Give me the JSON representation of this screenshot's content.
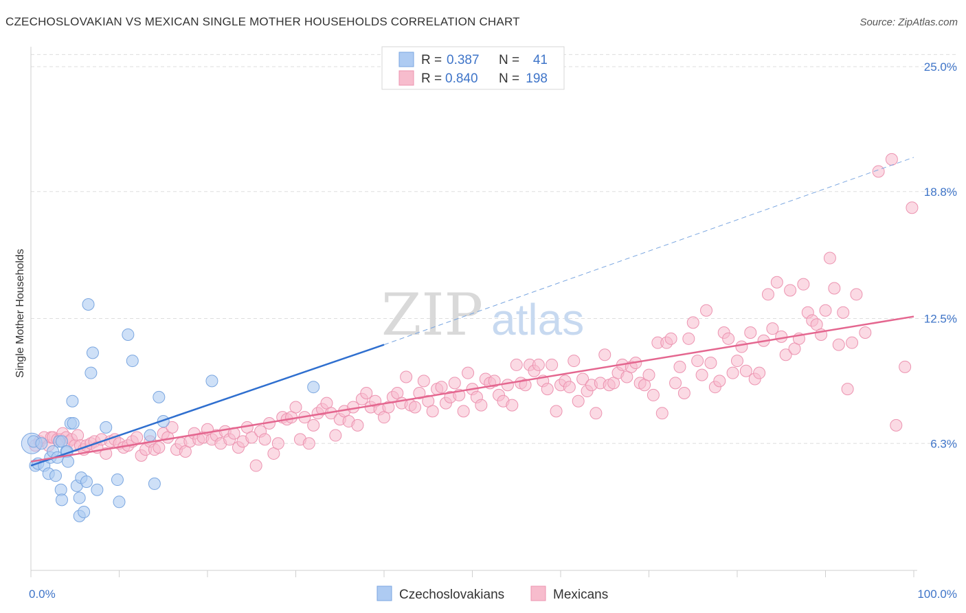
{
  "title": "CZECHOSLOVAKIAN VS MEXICAN SINGLE MOTHER HOUSEHOLDS CORRELATION CHART",
  "source": "Source: ZipAtlas.com",
  "watermark": {
    "zip": "ZIP",
    "atlas": "atlas"
  },
  "colors": {
    "blue_fill": "#aecbf2",
    "blue_stroke": "#7aa6e0",
    "blue_line": "#2f6fcf",
    "pink_fill": "#f7bccd",
    "pink_stroke": "#ec93b0",
    "pink_line": "#e4668f",
    "tick_text": "#3e74c8",
    "grid": "#dddddd"
  },
  "legend": {
    "rows": [
      {
        "r_label": "R =",
        "r_value": "0.387",
        "n_label": "N =",
        "n_value": "41"
      },
      {
        "r_label": "R =",
        "r_value": "0.840",
        "n_label": "N =",
        "n_value": "198"
      }
    ]
  },
  "bottom_legend": [
    "Czechoslovakians",
    "Mexicans"
  ],
  "chart_data": {
    "type": "scatter",
    "title": "CZECHOSLOVAKIAN VS MEXICAN SINGLE MOTHER HOUSEHOLDS CORRELATION CHART",
    "xlabel": "",
    "ylabel": "Single Mother Households",
    "xlim": [
      0,
      100
    ],
    "ylim": [
      0,
      25.6
    ],
    "x_tick_labels": [
      "0.0%",
      "100.0%"
    ],
    "y_ticks": [
      6.3,
      12.5,
      18.8,
      25.0
    ],
    "y_tick_labels": [
      "6.3%",
      "12.5%",
      "18.8%",
      "25.0%"
    ],
    "grid": true,
    "legend_position": "top-center",
    "series": [
      {
        "name": "Czechoslovakians",
        "color": "#aecbf2",
        "trend": {
          "x": [
            0,
            40
          ],
          "y": [
            5.2,
            11.2
          ],
          "dashed_to": [
            100,
            20.5
          ]
        },
        "points": [
          [
            0.3,
            6.4
          ],
          [
            0.5,
            5.2
          ],
          [
            0.8,
            5.3
          ],
          [
            1.2,
            6.3
          ],
          [
            1.5,
            5.2
          ],
          [
            2.0,
            4.8
          ],
          [
            2.2,
            5.6
          ],
          [
            2.5,
            5.9
          ],
          [
            2.8,
            4.7
          ],
          [
            3.0,
            5.6
          ],
          [
            3.2,
            6.4
          ],
          [
            3.5,
            6.4
          ],
          [
            3.4,
            4.0
          ],
          [
            3.5,
            3.5
          ],
          [
            4.0,
            5.9
          ],
          [
            4.1,
            5.9
          ],
          [
            4.2,
            5.4
          ],
          [
            4.5,
            7.3
          ],
          [
            4.7,
            8.4
          ],
          [
            4.8,
            7.3
          ],
          [
            5.2,
            4.2
          ],
          [
            5.5,
            3.6
          ],
          [
            5.5,
            2.7
          ],
          [
            5.7,
            4.6
          ],
          [
            6.0,
            2.9
          ],
          [
            6.5,
            13.2
          ],
          [
            6.3,
            4.4
          ],
          [
            6.8,
            9.8
          ],
          [
            7.0,
            10.8
          ],
          [
            7.5,
            4.0
          ],
          [
            8.5,
            7.1
          ],
          [
            9.8,
            4.5
          ],
          [
            10.0,
            3.4
          ],
          [
            11.0,
            11.7
          ],
          [
            11.5,
            10.4
          ],
          [
            14.0,
            4.3
          ],
          [
            14.5,
            8.6
          ],
          [
            15.0,
            7.4
          ],
          [
            13.5,
            6.7
          ],
          [
            20.5,
            9.4
          ],
          [
            32.0,
            9.1
          ]
        ]
      },
      {
        "name": "Mexicans",
        "color": "#f7bccd",
        "trend": {
          "x": [
            0,
            100
          ],
          "y": [
            5.4,
            12.6
          ]
        },
        "points": [
          [
            0.5,
            6.2
          ],
          [
            1.0,
            6.4
          ],
          [
            1.5,
            6.6
          ],
          [
            2.0,
            6.2
          ],
          [
            2.3,
            6.6
          ],
          [
            2.5,
            6.6
          ],
          [
            3.0,
            6.5
          ],
          [
            3.3,
            6.5
          ],
          [
            3.6,
            6.8
          ],
          [
            4.0,
            6.6
          ],
          [
            4.3,
            6.4
          ],
          [
            4.6,
            6.5
          ],
          [
            5.0,
            6.2
          ],
          [
            5.3,
            6.7
          ],
          [
            5.6,
            6.2
          ],
          [
            6.0,
            6.0
          ],
          [
            6.3,
            6.2
          ],
          [
            6.8,
            6.3
          ],
          [
            7.2,
            6.4
          ],
          [
            7.5,
            6.1
          ],
          [
            8.0,
            6.5
          ],
          [
            8.5,
            5.8
          ],
          [
            9.0,
            6.4
          ],
          [
            9.5,
            6.5
          ],
          [
            10.0,
            6.3
          ],
          [
            10.5,
            6.1
          ],
          [
            11.0,
            6.2
          ],
          [
            11.5,
            6.4
          ],
          [
            12.0,
            6.6
          ],
          [
            12.5,
            5.7
          ],
          [
            13.0,
            6.0
          ],
          [
            13.5,
            6.4
          ],
          [
            14.0,
            6.0
          ],
          [
            14.5,
            6.1
          ],
          [
            15.0,
            6.8
          ],
          [
            15.5,
            6.6
          ],
          [
            16.0,
            7.1
          ],
          [
            16.5,
            6.0
          ],
          [
            17.0,
            6.3
          ],
          [
            17.5,
            5.9
          ],
          [
            18.0,
            6.4
          ],
          [
            18.5,
            6.8
          ],
          [
            19.0,
            6.5
          ],
          [
            19.5,
            6.6
          ],
          [
            20.0,
            7.0
          ],
          [
            20.5,
            6.5
          ],
          [
            21.0,
            6.7
          ],
          [
            21.5,
            6.3
          ],
          [
            22.0,
            6.9
          ],
          [
            22.5,
            6.5
          ],
          [
            23.0,
            6.8
          ],
          [
            23.5,
            6.1
          ],
          [
            24.0,
            6.4
          ],
          [
            24.5,
            7.1
          ],
          [
            25.0,
            6.6
          ],
          [
            25.5,
            5.2
          ],
          [
            26.0,
            6.9
          ],
          [
            26.5,
            6.5
          ],
          [
            27.0,
            7.3
          ],
          [
            27.5,
            5.8
          ],
          [
            28.0,
            6.3
          ],
          [
            28.5,
            7.6
          ],
          [
            29.0,
            7.5
          ],
          [
            29.5,
            7.6
          ],
          [
            30.0,
            8.1
          ],
          [
            30.5,
            6.5
          ],
          [
            31.0,
            7.6
          ],
          [
            31.5,
            6.3
          ],
          [
            32.0,
            7.2
          ],
          [
            32.5,
            7.8
          ],
          [
            33.0,
            8.0
          ],
          [
            33.5,
            8.3
          ],
          [
            34.0,
            7.8
          ],
          [
            34.5,
            6.7
          ],
          [
            35.0,
            7.5
          ],
          [
            35.5,
            7.9
          ],
          [
            36.0,
            7.4
          ],
          [
            36.5,
            8.1
          ],
          [
            37.0,
            7.2
          ],
          [
            37.5,
            8.5
          ],
          [
            38.0,
            8.8
          ],
          [
            38.5,
            8.1
          ],
          [
            39.0,
            8.4
          ],
          [
            39.5,
            8.0
          ],
          [
            40.0,
            7.6
          ],
          [
            40.5,
            8.1
          ],
          [
            41.0,
            8.6
          ],
          [
            41.5,
            8.8
          ],
          [
            42.0,
            8.3
          ],
          [
            42.5,
            9.6
          ],
          [
            43.0,
            8.2
          ],
          [
            43.5,
            8.1
          ],
          [
            44.0,
            8.8
          ],
          [
            44.5,
            9.4
          ],
          [
            45.0,
            8.4
          ],
          [
            45.5,
            7.9
          ],
          [
            46.0,
            9.0
          ],
          [
            46.5,
            9.1
          ],
          [
            47.0,
            8.3
          ],
          [
            47.5,
            8.6
          ],
          [
            48.0,
            9.3
          ],
          [
            48.5,
            8.7
          ],
          [
            49.0,
            7.9
          ],
          [
            49.5,
            9.8
          ],
          [
            50.0,
            9.0
          ],
          [
            50.5,
            8.6
          ],
          [
            51.0,
            8.2
          ],
          [
            51.5,
            9.5
          ],
          [
            52.0,
            9.3
          ],
          [
            52.5,
            9.4
          ],
          [
            53.0,
            8.7
          ],
          [
            53.5,
            8.4
          ],
          [
            54.0,
            9.2
          ],
          [
            54.5,
            8.2
          ],
          [
            55.0,
            10.2
          ],
          [
            55.5,
            9.3
          ],
          [
            56.0,
            9.2
          ],
          [
            56.5,
            10.2
          ],
          [
            57.0,
            9.9
          ],
          [
            57.5,
            10.2
          ],
          [
            58.0,
            9.4
          ],
          [
            58.5,
            9.0
          ],
          [
            59.0,
            10.2
          ],
          [
            59.5,
            7.9
          ],
          [
            60.0,
            9.2
          ],
          [
            60.5,
            9.4
          ],
          [
            61.0,
            9.1
          ],
          [
            61.5,
            10.4
          ],
          [
            62.0,
            8.4
          ],
          [
            62.5,
            9.5
          ],
          [
            63.0,
            8.9
          ],
          [
            63.5,
            9.2
          ],
          [
            64.0,
            7.8
          ],
          [
            64.5,
            9.3
          ],
          [
            65.0,
            10.7
          ],
          [
            65.5,
            9.2
          ],
          [
            66.0,
            9.3
          ],
          [
            66.5,
            9.8
          ],
          [
            67.0,
            10.2
          ],
          [
            67.5,
            9.6
          ],
          [
            68.0,
            10.1
          ],
          [
            68.5,
            10.3
          ],
          [
            69.0,
            9.3
          ],
          [
            69.5,
            9.2
          ],
          [
            70.0,
            9.7
          ],
          [
            70.5,
            8.7
          ],
          [
            71.0,
            11.3
          ],
          [
            71.5,
            7.8
          ],
          [
            72.0,
            11.3
          ],
          [
            72.5,
            11.5
          ],
          [
            73.0,
            9.3
          ],
          [
            73.5,
            10.1
          ],
          [
            74.0,
            8.8
          ],
          [
            74.5,
            11.5
          ],
          [
            75.0,
            12.3
          ],
          [
            75.5,
            10.4
          ],
          [
            76.0,
            9.7
          ],
          [
            76.5,
            12.9
          ],
          [
            77.0,
            10.3
          ],
          [
            77.5,
            9.1
          ],
          [
            78.0,
            9.4
          ],
          [
            78.5,
            11.8
          ],
          [
            79.0,
            11.5
          ],
          [
            79.5,
            9.8
          ],
          [
            80.0,
            10.4
          ],
          [
            80.5,
            11.1
          ],
          [
            81.0,
            9.9
          ],
          [
            81.5,
            11.8
          ],
          [
            82.0,
            9.5
          ],
          [
            82.5,
            9.8
          ],
          [
            83.0,
            11.4
          ],
          [
            83.5,
            13.7
          ],
          [
            84.0,
            12.0
          ],
          [
            84.5,
            14.3
          ],
          [
            85.0,
            11.6
          ],
          [
            85.5,
            10.7
          ],
          [
            86.0,
            13.9
          ],
          [
            86.5,
            11.0
          ],
          [
            87.0,
            11.5
          ],
          [
            87.5,
            14.2
          ],
          [
            88.0,
            12.8
          ],
          [
            88.5,
            12.4
          ],
          [
            89.0,
            12.2
          ],
          [
            89.5,
            11.7
          ],
          [
            90.0,
            12.9
          ],
          [
            90.5,
            15.5
          ],
          [
            91.0,
            14.0
          ],
          [
            91.5,
            11.2
          ],
          [
            92.0,
            12.8
          ],
          [
            92.5,
            9.0
          ],
          [
            93.0,
            11.3
          ],
          [
            93.5,
            13.7
          ],
          [
            94.5,
            11.8
          ],
          [
            96.0,
            19.8
          ],
          [
            97.5,
            20.4
          ],
          [
            98.0,
            7.2
          ],
          [
            99.0,
            10.1
          ],
          [
            99.8,
            18.0
          ]
        ]
      }
    ]
  }
}
